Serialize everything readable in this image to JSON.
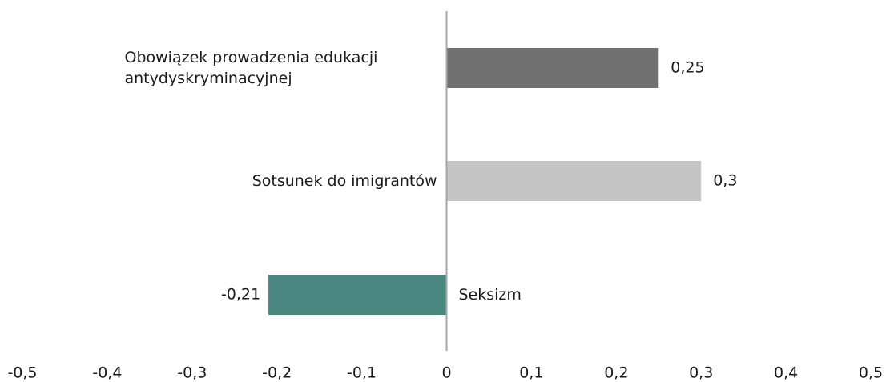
{
  "chart_data": {
    "type": "barh",
    "categories": [
      "Obowiązek prowadzenia edukacji antydyskryminacyjnej",
      "Sotsunek do imigrantów",
      "Seksizm"
    ],
    "values": [
      0.25,
      0.3,
      -0.21
    ],
    "value_labels": [
      "0,25",
      "0,3",
      "-0,21"
    ],
    "colors": [
      "#717171",
      "#c5c5c5",
      "#4a8680"
    ],
    "xlim": [
      -0.5,
      0.5
    ],
    "xticks": [
      {
        "value": -0.5,
        "label": "-0,5"
      },
      {
        "value": -0.4,
        "label": "-0,4"
      },
      {
        "value": -0.3,
        "label": "-0,3"
      },
      {
        "value": -0.2,
        "label": "-0,2"
      },
      {
        "value": -0.1,
        "label": "-0,1"
      },
      0,
      {
        "value": 0.1,
        "label": "0,1"
      },
      {
        "value": 0.2,
        "label": "0,2"
      },
      {
        "value": 0.3,
        "label": "0,3"
      },
      {
        "value": 0.4,
        "label": "0,4"
      },
      {
        "value": 0.5,
        "label": "0,5"
      }
    ],
    "grid": false
  }
}
